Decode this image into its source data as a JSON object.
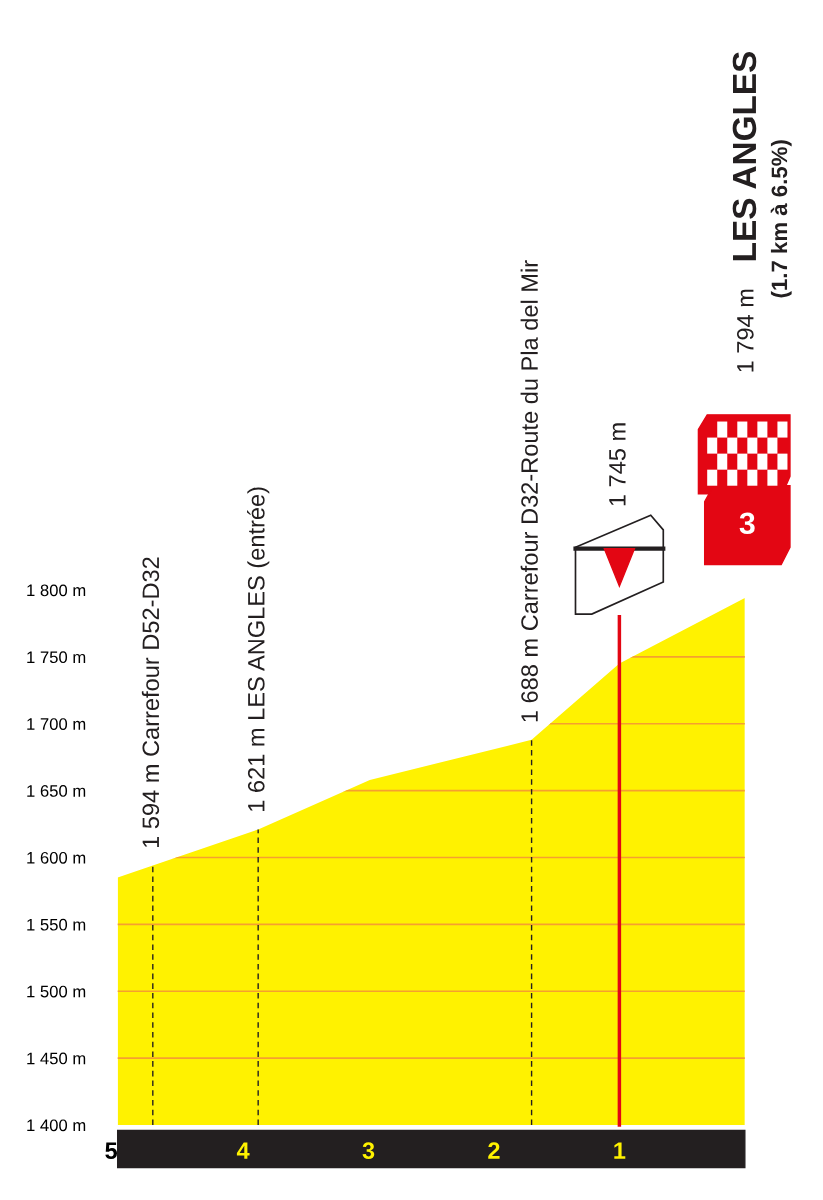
{
  "chart_data": {
    "type": "area",
    "title": "LES ANGLES",
    "subtitle": "(1.7 km à 6.5%)",
    "x": [
      5,
      4.72,
      3.88,
      2.99,
      1.7,
      1.0,
      0
    ],
    "series": [
      {
        "color": "#fff200",
        "values": [
          1585,
          1594,
          1621,
          1658,
          1688,
          1745,
          1794
        ]
      }
    ],
    "xlim": [
      5,
      0
    ],
    "xticks": [
      5,
      4,
      3,
      2,
      1
    ],
    "ylim": [
      1400,
      1800
    ],
    "yticks": [
      {
        "value": 1400,
        "label": "1 400 m"
      },
      {
        "value": 1450,
        "label": "1 450 m"
      },
      {
        "value": 1500,
        "label": "1 500 m"
      },
      {
        "value": 1550,
        "label": "1 550 m"
      },
      {
        "value": 1600,
        "label": "1 600 m"
      },
      {
        "value": 1650,
        "label": "1 650 m"
      },
      {
        "value": 1700,
        "label": "1 700 m"
      },
      {
        "value": 1750,
        "label": "1 750 m"
      },
      {
        "value": 1800,
        "label": "1 800 m"
      }
    ],
    "grid": "y",
    "ref_lines": [
      {
        "axis": "x",
        "value": 1,
        "color": "#e30613"
      }
    ],
    "annotations": [
      {
        "text": "1 594 m Carrefour D52-D32",
        "x": 4.72,
        "y": 1594
      },
      {
        "text": "1 621 m LES ANGLES (entrée)",
        "x": 3.88,
        "y": 1621
      },
      {
        "text": "1 688 m Carrefour D32-Route du Pla del Mir",
        "x": 1.7,
        "y": 1688
      },
      "1 745 m",
      "1 794 m",
      "3"
    ]
  }
}
